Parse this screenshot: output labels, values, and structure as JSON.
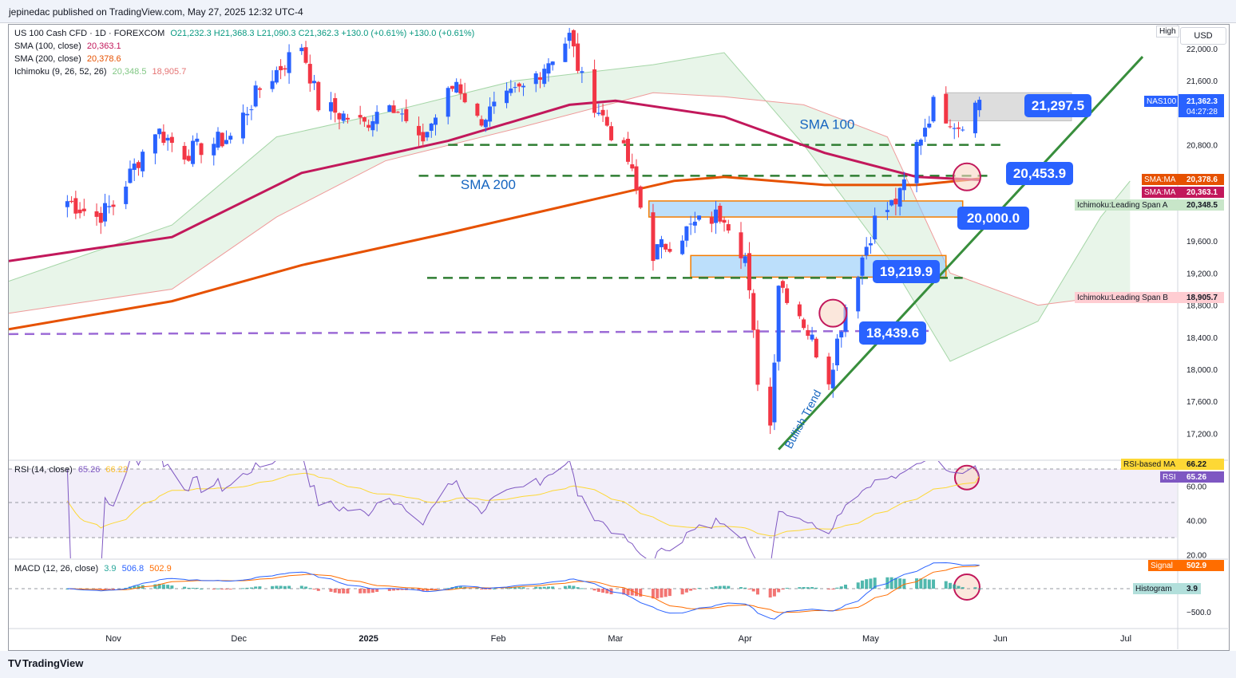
{
  "publisher_line": "jepinedac published on TradingView.com, May 27, 2025 12:32 UTC-4",
  "brand": "TradingView",
  "currency": "USD",
  "high_label": "High",
  "main_legend": {
    "symbol": "US 100 Cash CFD · 1D · FOREXCOM",
    "ohlc": "O21,232.3  H21,368.3  L21,090.3  C21,362.3  +130.0 (+0.61%)  +130.0 (+0.61%)",
    "sma100_label": "SMA (100, close)",
    "sma100_value": "20,363.1",
    "sma200_label": "SMA (200, close)",
    "sma200_value": "20,378.6",
    "ichimoku_label": "Ichimoku (9, 26, 52, 26)",
    "ichimoku_a": "20,348.5",
    "ichimoku_b": "18,905.7"
  },
  "rsi_legend": {
    "label": "RSI (14, close)",
    "rsi": "65.26",
    "ma": "66.22"
  },
  "macd_legend": {
    "label": "MACD (12, 26, close)",
    "hist": "3.9",
    "macd": "506.8",
    "signal": "502.9"
  },
  "price_axis": [
    "22,000.0",
    "21,600.0",
    "20,800.0",
    "19,600.0",
    "19,200.0",
    "18,800.0",
    "18,400.0",
    "18,000.0",
    "17,600.0",
    "17,200.0"
  ],
  "rsi_axis": [
    "60.00",
    "40.00",
    "20.00"
  ],
  "macd_axis": [
    "−500.0"
  ],
  "time_axis": [
    "Nov",
    "Dec",
    "2025",
    "Feb",
    "Mar",
    "Apr",
    "May",
    "Jun",
    "Jul"
  ],
  "axis_tags": {
    "last_symbol": "NAS100",
    "last_price": "21,362.3",
    "countdown": "04:27:28",
    "sma_a_label": "SMA:MA",
    "sma_a_value": "20,378.6",
    "sma_b_label": "SMA:MA",
    "sma_b_value": "20,363.1",
    "span_a_label": "Ichimoku:Leading Span A",
    "span_a_value": "20,348.5",
    "span_b_label": "Ichimoku:Leading Span B",
    "span_b_value": "18,905.7",
    "rsi_ma_label": "RSI-based MA",
    "rsi_ma_value": "66.22",
    "rsi_label": "RSI",
    "rsi_value": "65.26",
    "signal_label": "Signal",
    "signal_value": "502.9",
    "hist_label": "Histogram",
    "hist_value": "3.9"
  },
  "annotations": {
    "sma100": "SMA 100",
    "sma200": "SMA 200",
    "trend": "Bullish Trend",
    "callouts": [
      "21,297.5",
      "20,453.9",
      "20,000.0",
      "19,219.9",
      "18,439.6"
    ]
  },
  "colors": {
    "bull": "#2962ff",
    "bear": "#f23645",
    "sma100": "#c2185b",
    "sma200": "#e65100",
    "trendline": "#388e3c",
    "span_a": "#a5d6a7",
    "span_b": "#ef9a9a",
    "rsi": "#7e57c2",
    "rsi_ma": "#fdd835",
    "macd": "#2962ff",
    "signal": "#ff6d00",
    "callout": "#2962ff",
    "level_dash": "#2e7d32",
    "support_dash": "#9c6bd6"
  },
  "chart_data": {
    "type": "candlestick",
    "symbol": "US 100 Cash CFD",
    "timeframe": "1D",
    "ylim": [
      16900,
      22300
    ],
    "date_range": [
      "2024-10-21",
      "2025-05-27"
    ],
    "close_path": [
      [
        "2024-10-21",
        20100
      ],
      [
        "2024-10-28",
        19900
      ],
      [
        "2024-11-01",
        20050
      ],
      [
        "2024-11-11",
        21000
      ],
      [
        "2024-11-18",
        20700
      ],
      [
        "2024-11-29",
        20900
      ],
      [
        "2024-12-06",
        21500
      ],
      [
        "2024-12-16",
        22050
      ],
      [
        "2024-12-20",
        21300
      ],
      [
        "2024-12-31",
        21050
      ],
      [
        "2025-01-06",
        21400
      ],
      [
        "2025-01-13",
        20800
      ],
      [
        "2025-01-22",
        21600
      ],
      [
        "2025-01-27",
        21100
      ],
      [
        "2025-02-07",
        21500
      ],
      [
        "2025-02-18",
        22150
      ],
      [
        "2025-02-21",
        21600
      ],
      [
        "2025-03-04",
        20600
      ],
      [
        "2025-03-10",
        19450
      ],
      [
        "2025-03-20",
        19800
      ],
      [
        "2025-03-27",
        19950
      ],
      [
        "2025-04-01",
        19400
      ],
      [
        "2025-04-04",
        17900
      ],
      [
        "2025-04-07",
        17300
      ],
      [
        "2025-04-09",
        19100
      ],
      [
        "2025-04-14",
        18700
      ],
      [
        "2025-04-21",
        17900
      ],
      [
        "2025-04-25",
        18800
      ],
      [
        "2025-05-02",
        19850
      ],
      [
        "2025-05-08",
        20150
      ],
      [
        "2025-05-12",
        20800
      ],
      [
        "2025-05-16",
        21300
      ],
      [
        "2025-05-22",
        21050
      ],
      [
        "2025-05-27",
        21362.3
      ]
    ],
    "last": {
      "open": 21232.3,
      "high": 21368.3,
      "low": 21090.3,
      "close": 21362.3,
      "change": 130.0,
      "change_pct": 0.61
    },
    "sma100_last": 20363.1,
    "sma200_last": 20378.6,
    "ichimoku_span_a_last": 20348.5,
    "ichimoku_span_b_last": 18905.7,
    "horizontal_levels": [
      20800,
      20453.9,
      19219.9,
      18439.6
    ],
    "zones": [
      {
        "from": 21100,
        "to": 21450,
        "kind": "resistance"
      },
      {
        "from": 19900,
        "to": 20100,
        "kind": "supply"
      },
      {
        "from": 19150,
        "to": 19300,
        "kind": "demand"
      }
    ],
    "rsi": {
      "ylim": [
        20,
        80
      ],
      "last": 65.26,
      "ma_last": 66.22
    },
    "macd": {
      "macd_last": 506.8,
      "signal_last": 502.9,
      "hist_last": 3.9
    }
  }
}
